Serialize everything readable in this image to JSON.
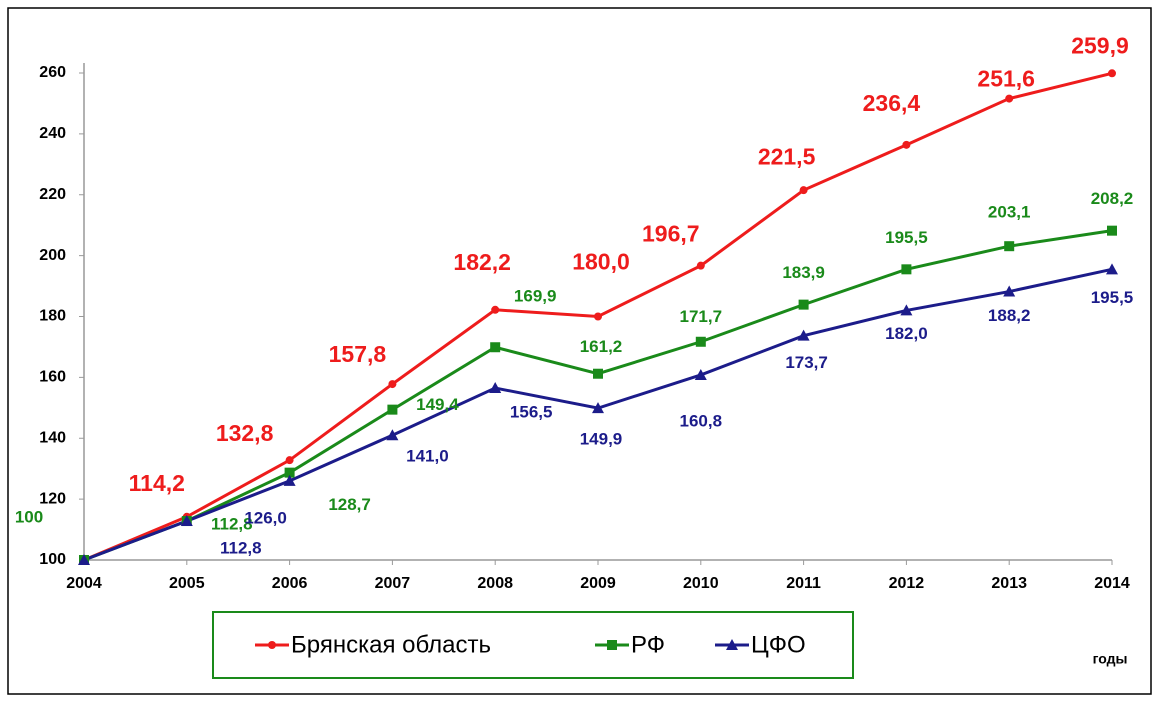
{
  "chart_data": {
    "type": "line",
    "x": [
      2004,
      2005,
      2006,
      2007,
      2008,
      2009,
      2010,
      2011,
      2012,
      2013,
      2014
    ],
    "xlim": [
      2004,
      2014
    ],
    "xticks": [
      2004,
      2005,
      2006,
      2007,
      2008,
      2009,
      2010,
      2011,
      2012,
      2013,
      2014
    ],
    "ylim": [
      100,
      260
    ],
    "yticks": [
      100,
      120,
      140,
      160,
      180,
      200,
      220,
      240,
      260
    ],
    "x_label": "годы",
    "legend": "bottom",
    "series": [
      {
        "name": "Брянская область",
        "color": "#ee1c1c",
        "marker": "circle",
        "values": [
          100,
          114.2,
          132.8,
          157.8,
          182.2,
          180.0,
          196.7,
          221.5,
          236.4,
          251.6,
          259.9
        ],
        "value_labels": [
          null,
          "114,2",
          "132,8",
          "157,8",
          "182,2",
          "180,0",
          "196,7",
          "221,5",
          "236,4",
          "251,6",
          "259,9"
        ]
      },
      {
        "name": "РФ",
        "color": "#1a8a1a",
        "marker": "square",
        "values": [
          100,
          112.8,
          128.7,
          149.4,
          169.9,
          161.2,
          171.7,
          183.9,
          195.5,
          203.1,
          208.2
        ],
        "value_labels": [
          "100",
          "112,8",
          "128,7",
          "149,4",
          "169,9",
          "161,2",
          "171,7",
          "183,9",
          "195,5",
          "203,1",
          "208,2"
        ]
      },
      {
        "name": "ЦФО",
        "color": "#1c1c8a",
        "marker": "triangle",
        "values": [
          100,
          112.8,
          126.0,
          141.0,
          156.5,
          149.9,
          160.8,
          173.7,
          182.0,
          188.2,
          195.5
        ],
        "value_labels": [
          null,
          "112,8",
          "126,0",
          "141,0",
          "156,5",
          "149,9",
          "160,8",
          "173,7",
          "182,0",
          "188,2",
          "195,5"
        ]
      }
    ]
  }
}
